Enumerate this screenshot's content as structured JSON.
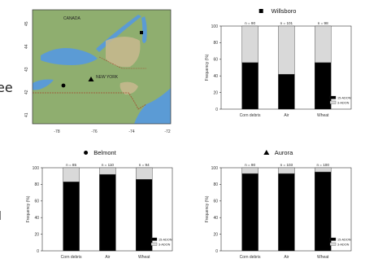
{
  "map": {
    "country_label": "CANADA",
    "state_label": "NEW YORK",
    "y_ticks": [
      "45",
      "44",
      "43",
      "42",
      "41"
    ],
    "x_ticks": [
      "-78",
      "-76",
      "-74",
      "-72"
    ],
    "colors": {
      "water": "#5b9bd5",
      "land": "#8fae6f",
      "highland": "#c9b98f"
    }
  },
  "edge_text": {
    "left_mid": "ee",
    "left_low": "l"
  },
  "colors": {
    "bar_bottom": "#000000",
    "bar_top": "#d9d9d9",
    "bar_edge": "#333333"
  },
  "chart_data": [
    {
      "type": "bar",
      "title": "Willsboro",
      "marker": "square",
      "categories": [
        "Corn debris",
        "Air",
        "Wheat"
      ],
      "n_labels": [
        "n = 90",
        "n = 101",
        "n = 98"
      ],
      "series": [
        {
          "name": "15-ADON",
          "values": [
            56,
            42,
            56
          ]
        },
        {
          "name": "3-ADON",
          "values": [
            44,
            58,
            44
          ]
        }
      ],
      "ylabel": "Frequency (%)",
      "ylim": [
        0,
        100
      ],
      "yticks": [
        0,
        20,
        40,
        60,
        80,
        100
      ],
      "legend": "bottom-right",
      "stacked": true
    },
    {
      "type": "bar",
      "title": "Belmont",
      "marker": "circle",
      "categories": [
        "Corn debris",
        "Air",
        "Wheat"
      ],
      "n_labels": [
        "n = 85",
        "n = 110",
        "n = 94"
      ],
      "series": [
        {
          "name": "15-ADON",
          "values": [
            83,
            92,
            86
          ]
        },
        {
          "name": "3-ADON",
          "values": [
            17,
            8,
            14
          ]
        }
      ],
      "ylabel": "Frequency (%)",
      "ylim": [
        0,
        100
      ],
      "yticks": [
        0,
        20,
        40,
        60,
        80,
        100
      ],
      "legend": "bottom-right",
      "stacked": true
    },
    {
      "type": "bar",
      "title": "Aurora",
      "marker": "triangle",
      "categories": [
        "Corn debris",
        "Air",
        "Wheat"
      ],
      "n_labels": [
        "n = 90",
        "n = 103",
        "n = 100"
      ],
      "series": [
        {
          "name": "15-ADON",
          "values": [
            93,
            93,
            95
          ]
        },
        {
          "name": "3-ADON",
          "values": [
            7,
            7,
            5
          ]
        }
      ],
      "ylabel": "Frequency (%)",
      "ylim": [
        0,
        100
      ],
      "yticks": [
        0,
        20,
        40,
        60,
        80,
        100
      ],
      "legend": "bottom-right",
      "stacked": true
    }
  ]
}
